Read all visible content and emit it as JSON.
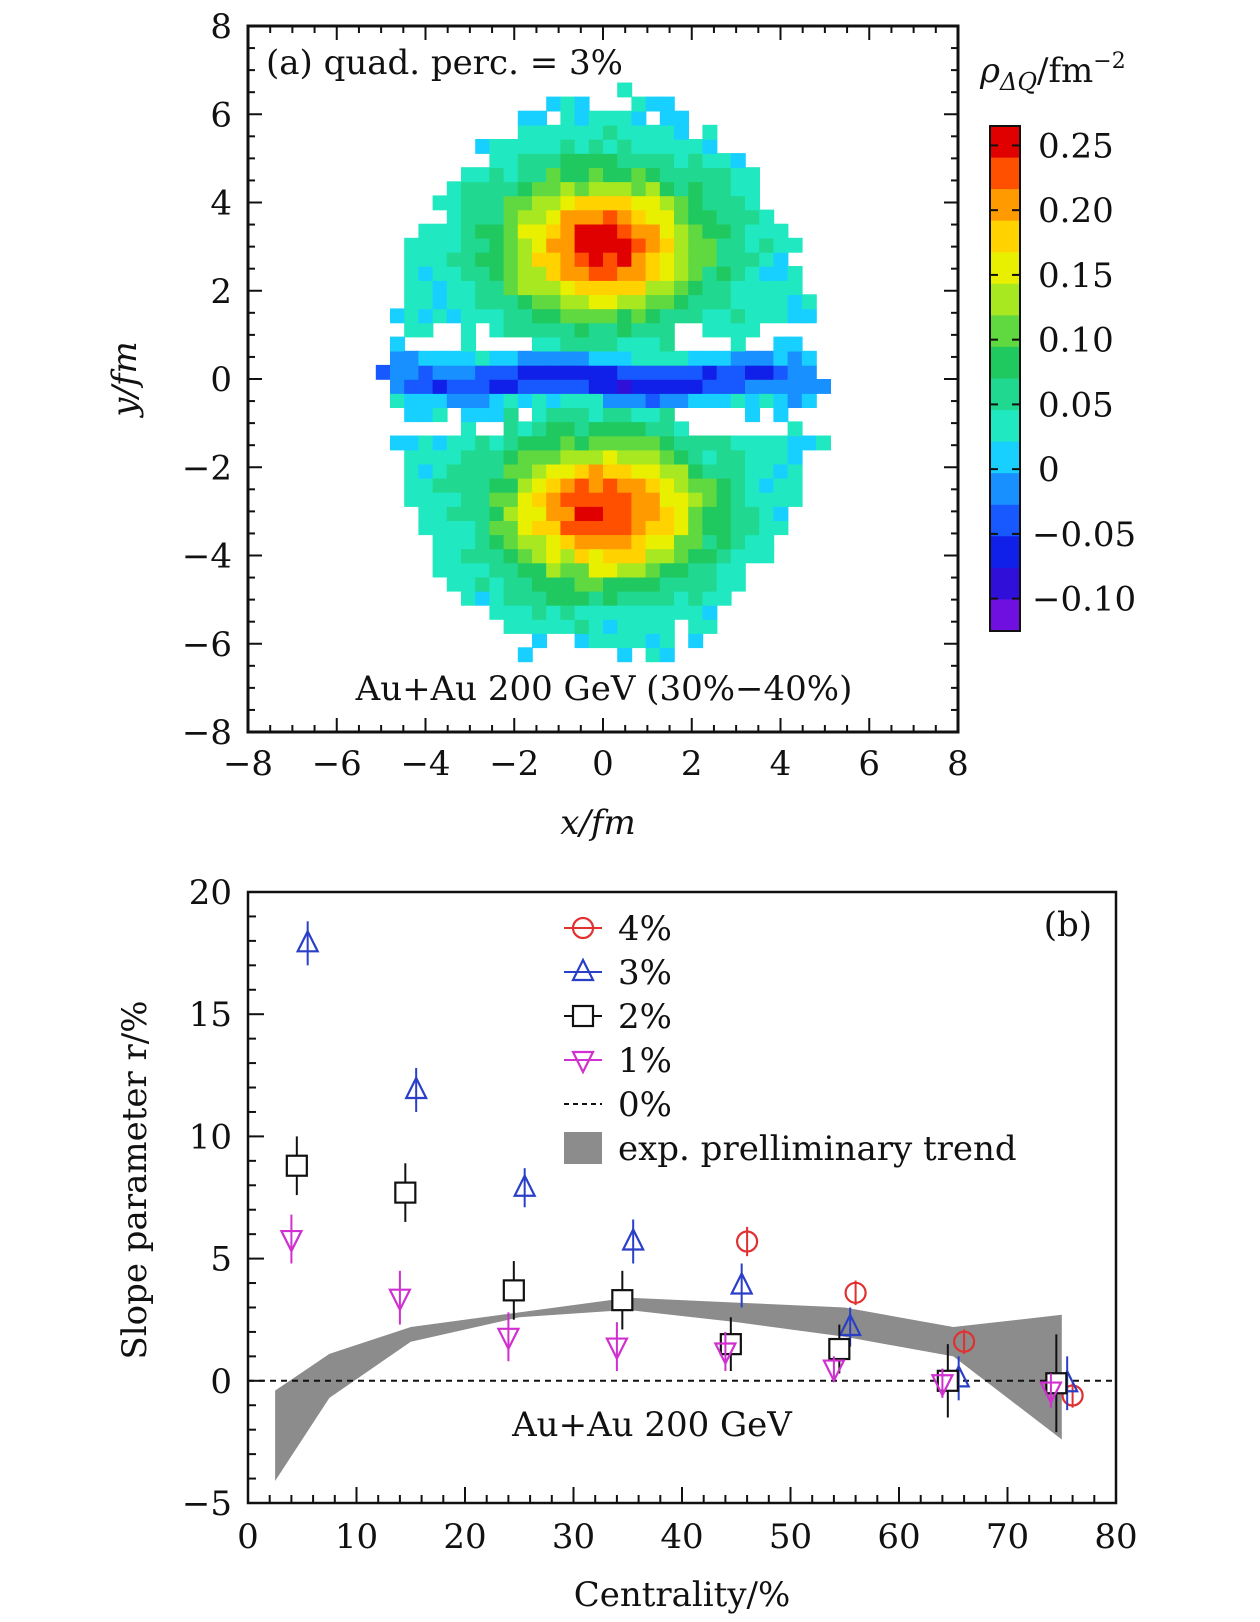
{
  "chart_data": [
    {
      "type": "heatmap",
      "panel_label": "(a) quad. perc. = 3%",
      "annotation": "Au+Au 200 GeV (30%−40%)",
      "xlabel": "x/fm",
      "ylabel": "y/fm",
      "xlim": [
        -8,
        8
      ],
      "ylim": [
        -8,
        8
      ],
      "x_ticks": [
        "−8",
        "−6",
        "−4",
        "−2",
        "0",
        "2",
        "4",
        "6",
        "8"
      ],
      "y_ticks": [
        "8",
        "6",
        "4",
        "2",
        "0",
        "−2",
        "−4",
        "−6",
        "−8"
      ],
      "colorbar": {
        "title": "ρΔQ/fm⁻²",
        "title_main": "ρ",
        "title_sub": "ΔQ",
        "title_unit": "/fm",
        "title_sup": "−2",
        "range": [
          -0.125,
          0.265
        ],
        "tick_labels": [
          "0.25",
          "0.20",
          "0.15",
          "0.10",
          "0.05",
          "0",
          "−0.05",
          "−0.10"
        ],
        "tick_values": [
          0.25,
          0.2,
          0.15,
          0.1,
          0.05,
          0.0,
          -0.05,
          -0.1
        ],
        "colors": [
          "#e00000",
          "#ff5000",
          "#ff9a00",
          "#ffd200",
          "#e8f000",
          "#a8e820",
          "#60d840",
          "#20c860",
          "#20d890",
          "#20e8c0",
          "#18d0ff",
          "#1890ff",
          "#1858ff",
          "#1020e8",
          "#3010d8",
          "#7010e0"
        ]
      },
      "field_description_values": {
        "upper_peak": {
          "x": 0,
          "y": 3,
          "value": 0.25
        },
        "lower_peak": {
          "x": 0,
          "y": -3,
          "value": 0.25
        },
        "central_band": {
          "y": 0,
          "value": -0.08
        },
        "background": 0.02
      }
    },
    {
      "type": "scatter",
      "panel_label": "(b)",
      "annotation": "Au+Au 200 GeV",
      "xlabel": "Centrality/%",
      "ylabel": "Slope parameter r/%",
      "xlim": [
        0,
        80
      ],
      "ylim": [
        -5,
        20
      ],
      "x_ticks": [
        "0",
        "10",
        "20",
        "30",
        "40",
        "50",
        "60",
        "70",
        "80"
      ],
      "y_ticks": [
        "20",
        "15",
        "10",
        "5",
        "0",
        "−5"
      ],
      "series": [
        {
          "name": "4%",
          "marker": "circle",
          "color": "#e03030",
          "x": [
            46,
            56,
            66,
            76
          ],
          "y": [
            5.7,
            3.6,
            1.6,
            -0.6
          ],
          "err": [
            0.6,
            0.5,
            0.5,
            0.5
          ]
        },
        {
          "name": "3%",
          "marker": "triangle-up",
          "color": "#2a3fc8",
          "x": [
            5.5,
            15.5,
            25.5,
            35.5,
            45.5,
            55.5,
            65.5,
            75.5
          ],
          "y": [
            17.9,
            11.9,
            7.9,
            5.7,
            3.9,
            2.2,
            0.1,
            -0.1
          ],
          "err": [
            0.9,
            0.9,
            0.8,
            0.9,
            0.9,
            0.8,
            0.9,
            1.1
          ]
        },
        {
          "name": "2%",
          "marker": "square",
          "color": "#111111",
          "x": [
            4.5,
            14.5,
            24.5,
            34.5,
            44.5,
            54.5,
            64.5,
            74.5
          ],
          "y": [
            8.8,
            7.7,
            3.7,
            3.3,
            1.5,
            1.3,
            0.0,
            -0.1
          ],
          "err": [
            1.2,
            1.2,
            1.2,
            1.2,
            1.1,
            1.0,
            1.5,
            2.0
          ]
        },
        {
          "name": "1%",
          "marker": "triangle-down",
          "color": "#d030d0",
          "x": [
            4,
            14,
            24,
            34,
            44,
            54,
            64,
            74
          ],
          "y": [
            5.8,
            3.4,
            1.8,
            1.4,
            1.2,
            0.5,
            -0.1,
            -0.4
          ],
          "err": [
            1.0,
            1.1,
            1.0,
            1.0,
            0.8,
            0.5,
            0.6,
            0.7
          ]
        },
        {
          "name": "0%",
          "marker": "dashed-line",
          "color": "#111111",
          "y": 0
        }
      ],
      "band": {
        "name": "exp. prelliminary trend",
        "color": "#8c8c8c",
        "x": [
          2.5,
          7.5,
          15,
          25,
          35,
          45,
          55,
          65,
          75
        ],
        "upper": [
          -0.4,
          1.1,
          2.2,
          2.8,
          3.4,
          3.2,
          3.0,
          2.2,
          2.7
        ],
        "lower": [
          -4.1,
          -0.7,
          1.6,
          2.6,
          2.9,
          2.4,
          1.8,
          1.0,
          -2.4
        ]
      }
    }
  ]
}
